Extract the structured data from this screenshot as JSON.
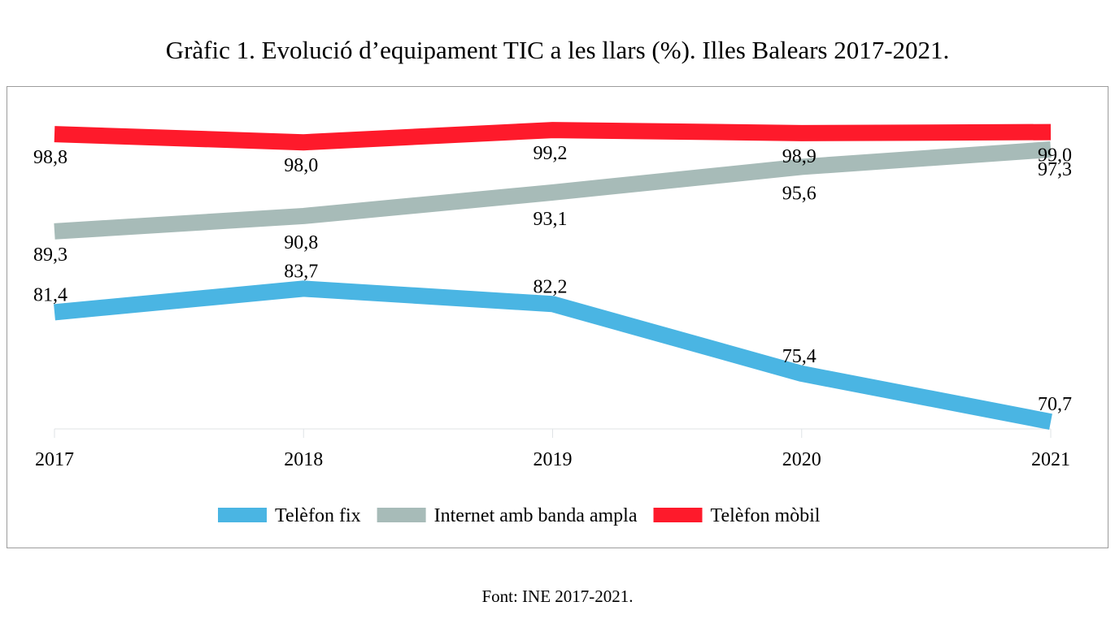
{
  "title": "Gràfic 1. Evolució d’equipament TIC a les llars (%). Illes Balears 2017-2021.",
  "source": "Font: INE 2017-2021.",
  "chart_data": {
    "type": "line",
    "title": "Gràfic 1. Evolució d’equipament TIC a les llars (%). Illes Balears 2017-2021.",
    "xlabel": "",
    "ylabel": "",
    "categories": [
      "2017",
      "2018",
      "2019",
      "2020",
      "2021"
    ],
    "ylim": [
      70,
      100
    ],
    "grid": false,
    "y_axis_visible": false,
    "legend_position": "bottom",
    "series": [
      {
        "name": "Telèfon fix",
        "color": "#4ab5e3",
        "values": [
          81.4,
          83.7,
          82.2,
          75.4,
          70.7
        ],
        "labels": [
          "81,4",
          "83,7",
          "82,2",
          "75,4",
          "70,7"
        ]
      },
      {
        "name": "Internet amb banda ampla",
        "color": "#a7bbb8",
        "values": [
          89.3,
          90.8,
          93.1,
          95.6,
          97.3
        ],
        "labels": [
          "89,3",
          "90,8",
          "93,1",
          "95,6",
          "97,3"
        ]
      },
      {
        "name": "Telèfon mòbil",
        "color": "#fe1a2b",
        "values": [
          98.8,
          98.0,
          99.2,
          98.9,
          99.0
        ],
        "labels": [
          "98,8",
          "98,0",
          "99,2",
          "98,9",
          "99,0"
        ]
      }
    ]
  }
}
